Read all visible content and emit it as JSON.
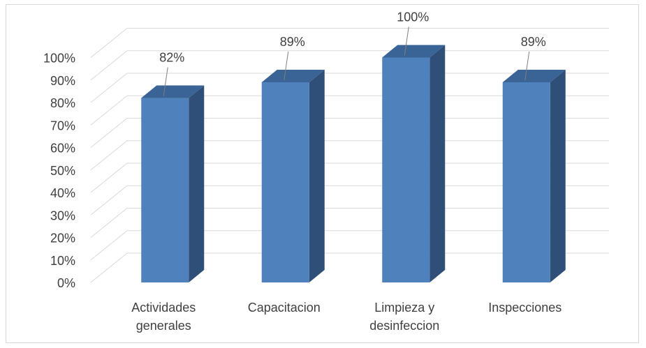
{
  "chart_data": {
    "type": "bar",
    "title": "",
    "xlabel": "",
    "ylabel": "",
    "categories": [
      [
        "Actividades",
        "generales"
      ],
      [
        "Capacitacion"
      ],
      [
        "Limpieza y",
        "desinfeccion"
      ],
      [
        "Inspecciones"
      ]
    ],
    "values": [
      82,
      89,
      100,
      89
    ],
    "data_labels": [
      "82%",
      "89%",
      "100%",
      "89%"
    ],
    "y_ticks": [
      "0%",
      "10%",
      "20%",
      "30%",
      "40%",
      "50%",
      "60%",
      "70%",
      "80%",
      "90%",
      "100%"
    ],
    "ylim": [
      0,
      100
    ],
    "grid": true,
    "style": "3d-column",
    "colors": {
      "front": "#4f81bd",
      "side": "#2f4f78",
      "top": "#3a6396",
      "grid": "#d9d9d9",
      "leader": "#7f7f7f"
    }
  }
}
